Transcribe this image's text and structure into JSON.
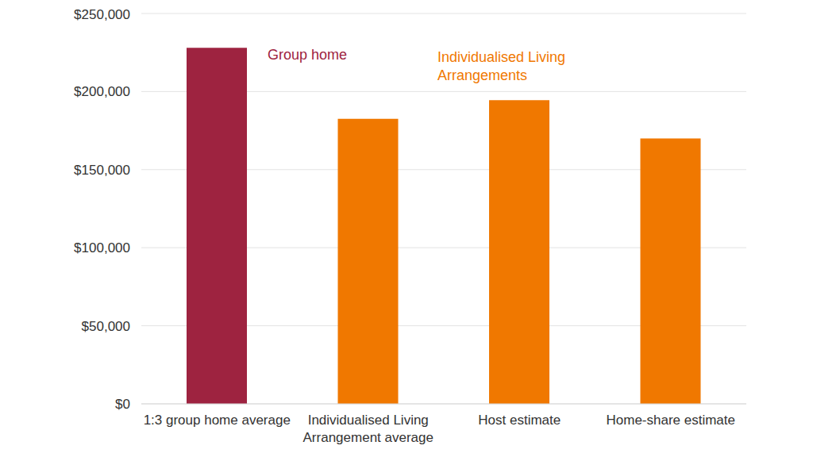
{
  "chart_data": {
    "type": "bar",
    "categories": [
      "1:3 group home average",
      "Individualised Living Arrangement average",
      "Host estimate",
      "Home-share estimate"
    ],
    "values": [
      228000,
      182500,
      194500,
      170000
    ],
    "colors": [
      "#9e2340",
      "#f07800",
      "#f07800",
      "#f07800"
    ],
    "ylim": [
      0,
      250000
    ],
    "yticks": [
      {
        "value": 0,
        "label": "$0"
      },
      {
        "value": 50000,
        "label": "$50,000"
      },
      {
        "value": 100000,
        "label": "$100,000"
      },
      {
        "value": 150000,
        "label": "$150,000"
      },
      {
        "value": 200000,
        "label": "$200,000"
      },
      {
        "value": 250000,
        "label": "$250,000"
      }
    ],
    "grid": true,
    "annotations": [
      {
        "text": "Group home",
        "color": "#9e2340"
      },
      {
        "text": "Individualised Living Arrangements",
        "color": "#f07800"
      }
    ]
  }
}
